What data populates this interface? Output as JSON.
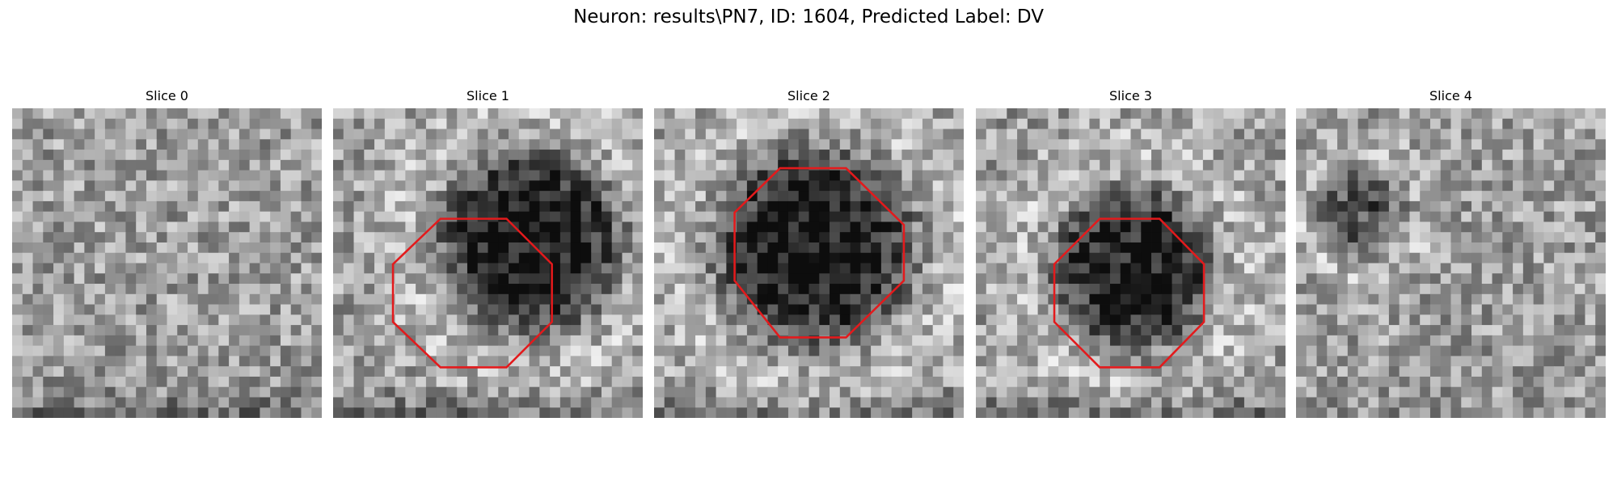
{
  "header": {
    "title": "Neuron: results\\PN7, ID: 1604, Predicted Label: DV"
  },
  "panels": [
    {
      "title": "Slice 0"
    },
    {
      "title": "Slice 1"
    },
    {
      "title": "Slice 2"
    },
    {
      "title": "Slice 3"
    },
    {
      "title": "Slice 4"
    }
  ]
}
